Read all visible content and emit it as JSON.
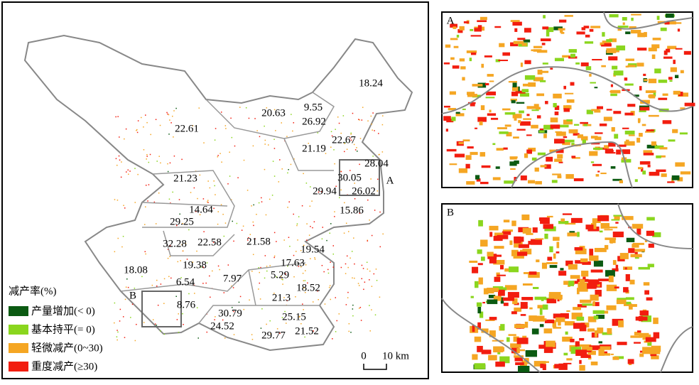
{
  "map": {
    "regions": [
      "18.24",
      "9.55",
      "20.63",
      "26.92",
      "22.61",
      "22.67",
      "21.19",
      "28.04",
      "21.23",
      "30.05",
      "29.94",
      "26.02",
      "14.64",
      "15.86",
      "29.25",
      "32.28",
      "22.58",
      "21.58",
      "19.54",
      "17.63",
      "18.08",
      "19.38",
      "7.97",
      "5.29",
      "6.54",
      "18.52",
      "21.3",
      "8.76",
      "30.79",
      "25.15",
      "24.52",
      "21.52",
      "29.77"
    ],
    "box_labels": [
      "A",
      "B"
    ],
    "legend": {
      "title": "减产率(%)",
      "items": [
        "产量增加(< 0)",
        "基本持平(= 0)",
        "轻微减产(0~30)",
        "重度减产(≥30)"
      ]
    },
    "scale": {
      "start": "0",
      "end": "10 km"
    },
    "insets": [
      "A",
      "B"
    ]
  }
}
